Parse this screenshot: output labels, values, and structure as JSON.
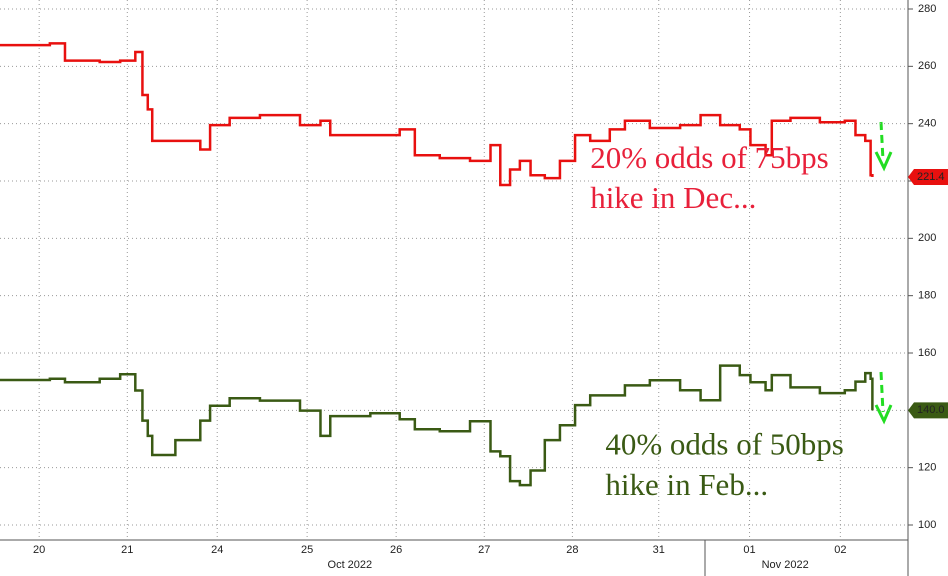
{
  "chart_data": {
    "type": "line",
    "x": [
      0,
      0.56,
      0.73,
      1.12,
      1.35,
      1.52,
      1.6,
      1.66,
      1.71,
      1.97,
      2.25,
      2.36,
      2.58,
      2.92,
      3.37,
      3.6,
      3.71,
      4.16,
      4.49,
      4.66,
      4.94,
      5.28,
      5.51,
      5.62,
      5.73,
      5.84,
      5.96,
      6.12,
      6.29,
      6.46,
      6.63,
      6.85,
      7.02,
      7.3,
      7.64,
      7.87,
      8.09,
      8.31,
      8.43,
      8.6,
      8.67,
      8.88,
      9.21,
      9.49,
      9.61,
      9.72,
      9.78,
      9.8
    ],
    "series": [
      {
        "name": "Dec",
        "color": "#e8100f",
        "values": [
          267.4,
          268,
          262,
          261.5,
          262,
          265,
          250,
          245,
          234,
          234,
          231,
          239.5,
          242,
          243,
          239.5,
          241,
          236,
          236,
          238,
          229,
          228,
          227,
          232.5,
          218.6,
          224,
          227,
          222,
          221,
          227,
          236,
          234,
          238,
          241,
          238.5,
          239.5,
          243,
          239.5,
          238,
          232.5,
          229,
          241,
          242,
          240.5,
          241,
          236,
          234,
          222,
          221.4
        ],
        "value_labels": [
          null,
          null,
          null,
          null,
          null,
          null,
          null,
          null,
          null,
          null,
          null,
          null,
          null,
          null,
          null,
          null,
          null,
          null,
          null,
          null,
          null,
          null,
          null,
          null,
          null,
          null,
          null,
          null,
          null,
          null,
          null,
          null,
          null,
          null,
          null,
          null,
          null,
          null,
          null,
          null,
          null,
          null,
          null,
          null,
          null,
          null,
          null,
          "221.4"
        ]
      },
      {
        "name": "Feb",
        "color": "#3a5a14",
        "values": [
          150.6,
          151,
          149.8,
          151,
          152.6,
          146.9,
          136.4,
          131.1,
          124.4,
          129.6,
          136.4,
          141.6,
          144.2,
          143.4,
          139.9,
          131.1,
          138,
          139,
          136.9,
          133.4,
          132.7,
          136.2,
          125.7,
          124,
          115.3,
          113.9,
          119,
          129.6,
          134.8,
          141.8,
          145.2,
          145.2,
          148.7,
          150.5,
          147,
          143.5,
          155.6,
          152.3,
          149.8,
          147,
          152.3,
          148,
          146,
          147,
          150,
          153,
          151,
          140.0
        ],
        "value_labels": [
          null,
          null,
          null,
          null,
          null,
          null,
          null,
          null,
          null,
          null,
          null,
          null,
          null,
          null,
          null,
          null,
          null,
          null,
          null,
          null,
          null,
          null,
          null,
          null,
          null,
          null,
          null,
          null,
          null,
          null,
          null,
          null,
          null,
          null,
          null,
          null,
          null,
          null,
          null,
          null,
          null,
          null,
          null,
          null,
          null,
          null,
          null,
          "140.0"
        ]
      }
    ],
    "xlim": [
      0,
      10.2
    ],
    "xticks": [
      {
        "value": 0.44,
        "label": "20"
      },
      {
        "value": 1.43,
        "label": "21"
      },
      {
        "value": 2.44,
        "label": "24"
      },
      {
        "value": 3.45,
        "label": "25"
      },
      {
        "value": 4.45,
        "label": "26"
      },
      {
        "value": 5.44,
        "label": "27"
      },
      {
        "value": 6.43,
        "label": "28"
      },
      {
        "value": 7.4,
        "label": "31"
      },
      {
        "value": 8.42,
        "label": "01"
      },
      {
        "value": 9.44,
        "label": "02"
      }
    ],
    "months": [
      {
        "value": 3.93,
        "label": "Oct 2022"
      },
      {
        "value": 8.82,
        "label": "Nov 2022"
      }
    ],
    "ylim": [
      100,
      280
    ],
    "yticks": [
      100,
      120,
      140,
      160,
      180,
      200,
      220,
      240,
      260,
      280
    ],
    "grid": true,
    "annotations": [
      {
        "text": "20% odds of 75bps",
        "color": "#e8203a",
        "x": 6.63,
        "y": 227
      },
      {
        "text": "hike in Dec...",
        "color": "#e8203a",
        "x": 6.63,
        "y": 213
      },
      {
        "text": "40% odds of 50bps",
        "color": "#3a5a14",
        "x": 6.8,
        "y": 127
      },
      {
        "text": "hike in Feb...",
        "color": "#3a5a14",
        "x": 6.8,
        "y": 113
      }
    ]
  }
}
